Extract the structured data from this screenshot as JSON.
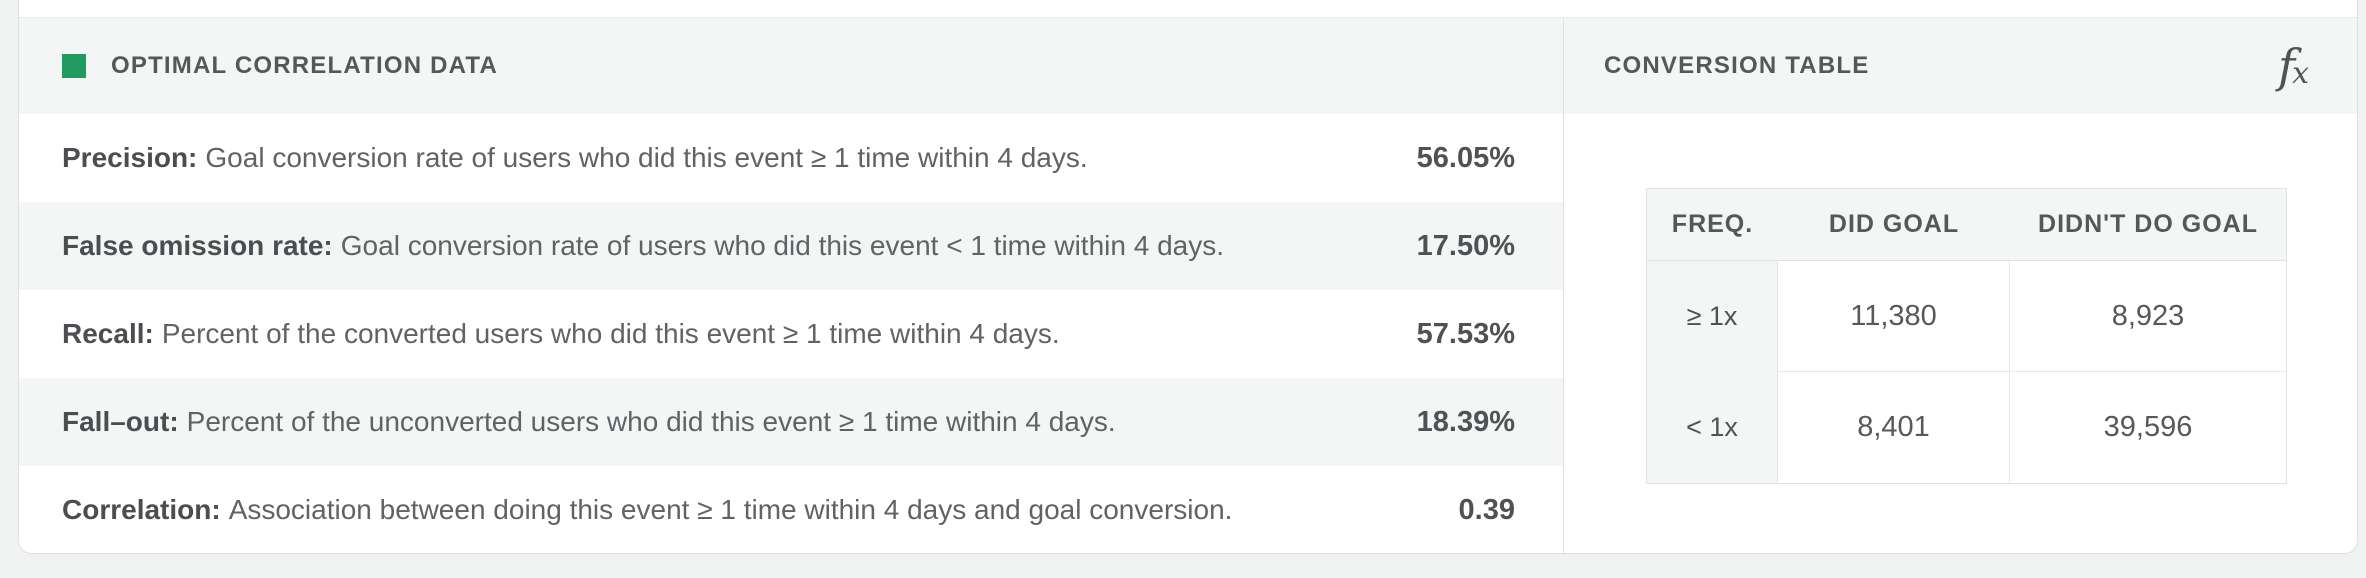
{
  "left_panel": {
    "title": "OPTIMAL CORRELATION DATA",
    "legend_color": "#219a61",
    "rows": [
      {
        "label": "Precision:",
        "description": "Goal conversion rate of users who did this event ≥ 1 time within 4 days.",
        "value": "56.05%"
      },
      {
        "label": "False omission rate:",
        "description": "Goal conversion rate of users who did this event < 1 time within 4 days.",
        "value": "17.50%"
      },
      {
        "label": "Recall:",
        "description": "Percent of the converted users who did this event ≥ 1 time within 4 days.",
        "value": "57.53%"
      },
      {
        "label": "Fall–out:",
        "description": "Percent of the unconverted users who did this event ≥ 1 time within 4 days.",
        "value": "18.39%"
      },
      {
        "label": "Correlation:",
        "description": "Association between doing this event ≥ 1 time within 4 days and goal conversion.",
        "value": "0.39"
      }
    ]
  },
  "right_panel": {
    "title": "CONVERSION TABLE",
    "fx_icon": {
      "f": "f",
      "x": "x"
    },
    "table": {
      "headers": [
        "FREQ.",
        "DID GOAL",
        "DIDN'T DO GOAL"
      ],
      "rows": [
        {
          "freq": "≥ 1x",
          "did_goal": "11,380",
          "didnt_do_goal": "8,923"
        },
        {
          "freq": "< 1x",
          "did_goal": "8,401",
          "didnt_do_goal": "39,596"
        }
      ]
    }
  }
}
